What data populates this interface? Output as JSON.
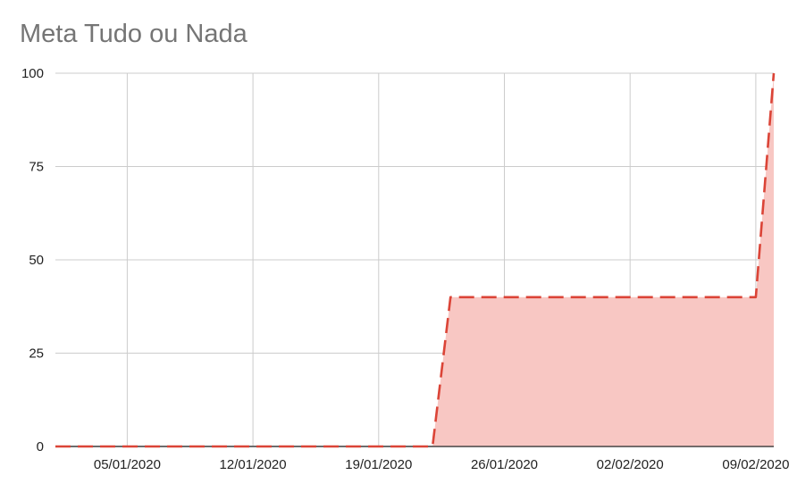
{
  "chart_data": {
    "type": "area",
    "title": "Meta Tudo ou Nada",
    "xlabel": "",
    "ylabel": "",
    "ylim": [
      0,
      100
    ],
    "y_ticks": [
      "0",
      "25",
      "50",
      "75",
      "100"
    ],
    "x_ticks": [
      "05/01/2020",
      "12/01/2020",
      "19/01/2020",
      "26/01/2020",
      "02/02/2020",
      "09/02/2020"
    ],
    "x_range": [
      "01/01/2020",
      "10/02/2020"
    ],
    "grid": true,
    "legend": "none",
    "series": [
      {
        "color": "#db4437",
        "line_style": "dashed",
        "fill_color": "#f8c7c3",
        "points": [
          {
            "x": "01/01/2020",
            "y": 0
          },
          {
            "x": "22/01/2020",
            "y": 0
          },
          {
            "x": "23/01/2020",
            "y": 40
          },
          {
            "x": "09/02/2020",
            "y": 40
          },
          {
            "x": "10/02/2020",
            "y": 100
          }
        ]
      }
    ]
  }
}
